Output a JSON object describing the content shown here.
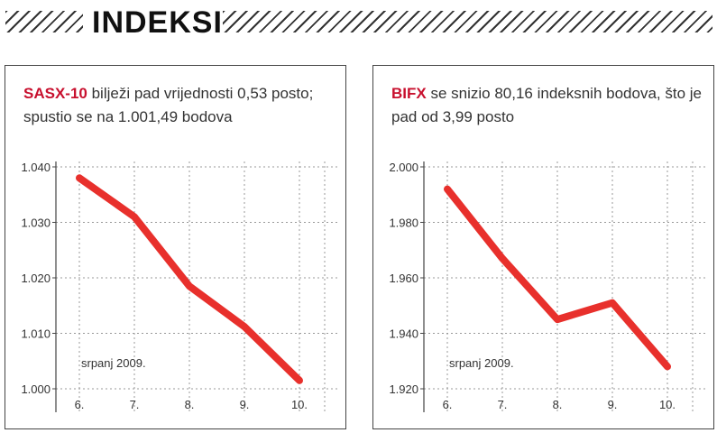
{
  "header": {
    "title": "INDEKSI"
  },
  "panels": [
    {
      "name_highlight": "SASX-10",
      "caption_text": " bilježi pad vrijednosti 0,53 posto; spustio se na 1.001,49 bodova",
      "note": "srpanj 2009."
    },
    {
      "name_highlight": "BIFX",
      "caption_text": " se snizio 80,16 indeksnih bodova, što je pad od 3,99 posto",
      "note": "srpanj 2009."
    }
  ],
  "colors": {
    "line": "#e8302c",
    "highlight": "#c8102e",
    "grid": "#999999"
  },
  "chart_data": [
    {
      "type": "line",
      "title": "",
      "xlabel": "",
      "ylabel": "",
      "categories": [
        "6.",
        "7.",
        "8.",
        "9.",
        "10."
      ],
      "values": [
        1.038,
        1.031,
        1.0185,
        1.0112,
        1.0015
      ],
      "ylim": [
        1.0,
        1.04
      ],
      "yticks": [
        1.0,
        1.01,
        1.02,
        1.03,
        1.04
      ],
      "ytick_labels": [
        "1.000",
        "1.010",
        "1.020",
        "1.030",
        "1.040"
      ],
      "grid": true
    },
    {
      "type": "line",
      "title": "",
      "xlabel": "",
      "ylabel": "",
      "categories": [
        "6.",
        "7.",
        "8.",
        "9.",
        "10."
      ],
      "values": [
        1.992,
        1.967,
        1.945,
        1.951,
        1.928
      ],
      "ylim": [
        1.92,
        2.0
      ],
      "yticks": [
        1.92,
        1.94,
        1.96,
        1.98,
        2.0
      ],
      "ytick_labels": [
        "1.920",
        "1.940",
        "1.960",
        "1.980",
        "2.000"
      ],
      "grid": true
    }
  ]
}
